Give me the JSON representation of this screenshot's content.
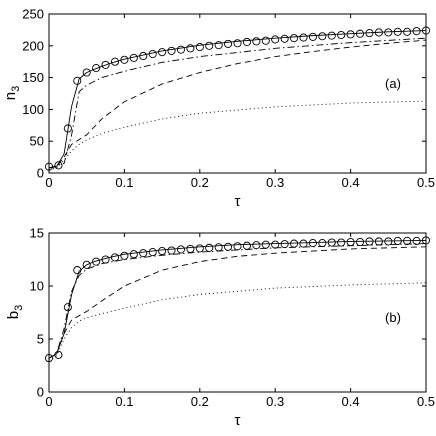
{
  "chart_data": [
    {
      "type": "line",
      "panel_tag": "(a)",
      "xlabel": "τ",
      "ylabel_main": "n",
      "ylabel_sub": "3",
      "xlim": [
        0,
        0.5
      ],
      "ylim": [
        0,
        250
      ],
      "xticks": [
        0,
        0.1,
        0.2,
        0.3,
        0.4,
        0.5
      ],
      "xtick_labels": [
        "0",
        "0.1",
        "0.2",
        "0.3",
        "0.4",
        "0.5"
      ],
      "yticks": [
        0,
        50,
        100,
        150,
        200,
        250
      ],
      "ytick_labels": [
        "0",
        "50",
        "100",
        "150",
        "200",
        "250"
      ],
      "grid": false,
      "legend": "none",
      "series": [
        {
          "style": "solid",
          "color": "#000000",
          "x": [
            0,
            0.01,
            0.02,
            0.03,
            0.04,
            0.05,
            0.06,
            0.08,
            0.1,
            0.15,
            0.2,
            0.25,
            0.3,
            0.35,
            0.4,
            0.45,
            0.5
          ],
          "y": [
            8,
            10,
            30,
            105,
            148,
            158,
            163,
            172,
            179,
            192,
            201,
            207,
            212,
            216,
            219,
            222,
            224
          ]
        },
        {
          "style": "markers",
          "marker": "circle",
          "color": "#000000",
          "x": [
            0,
            0.0125,
            0.025,
            0.0375,
            0.05,
            0.0625,
            0.075,
            0.0875,
            0.1,
            0.1125,
            0.125,
            0.1375,
            0.15,
            0.1625,
            0.175,
            0.1875,
            0.2,
            0.2125,
            0.225,
            0.2375,
            0.25,
            0.2625,
            0.275,
            0.2875,
            0.3,
            0.3125,
            0.325,
            0.3375,
            0.35,
            0.3625,
            0.375,
            0.3875,
            0.4,
            0.4125,
            0.425,
            0.4375,
            0.45,
            0.4625,
            0.475,
            0.4875,
            0.5
          ],
          "y": [
            10,
            12,
            70,
            145,
            158,
            165,
            170,
            175,
            178,
            181,
            184,
            187,
            190,
            192,
            194,
            196,
            198,
            200,
            201,
            203,
            204,
            206,
            207,
            208,
            210,
            211,
            212,
            213,
            214,
            215,
            216,
            217,
            218,
            219,
            220,
            221,
            221,
            222,
            222,
            223,
            224
          ]
        },
        {
          "style": "dashdot",
          "color": "#000000",
          "x": [
            0,
            0.02,
            0.03,
            0.04,
            0.05,
            0.07,
            0.1,
            0.15,
            0.2,
            0.3,
            0.4,
            0.5
          ],
          "y": [
            8,
            15,
            60,
            128,
            138,
            150,
            160,
            174,
            183,
            196,
            205,
            212
          ]
        },
        {
          "style": "dashed",
          "color": "#000000",
          "x": [
            0,
            0.01,
            0.02,
            0.03,
            0.05,
            0.07,
            0.1,
            0.15,
            0.2,
            0.25,
            0.3,
            0.35,
            0.4,
            0.45,
            0.5
          ],
          "y": [
            8,
            10,
            25,
            45,
            60,
            85,
            112,
            140,
            158,
            172,
            183,
            191,
            198,
            204,
            209
          ]
        },
        {
          "style": "dotted",
          "color": "#000000",
          "x": [
            0,
            0.01,
            0.02,
            0.03,
            0.04,
            0.05,
            0.07,
            0.1,
            0.15,
            0.2,
            0.3,
            0.4,
            0.5
          ],
          "y": [
            5,
            8,
            20,
            35,
            45,
            52,
            62,
            72,
            85,
            94,
            104,
            110,
            113
          ]
        }
      ]
    },
    {
      "type": "line",
      "panel_tag": "(b)",
      "xlabel": "τ",
      "ylabel_main": "b",
      "ylabel_sub": "3",
      "xlim": [
        0,
        0.5
      ],
      "ylim": [
        0,
        15
      ],
      "xticks": [
        0,
        0.1,
        0.2,
        0.3,
        0.4,
        0.5
      ],
      "xtick_labels": [
        "0",
        "0.1",
        "0.2",
        "0.3",
        "0.4",
        "0.5"
      ],
      "yticks": [
        0,
        5,
        10,
        15
      ],
      "ytick_labels": [
        "0",
        "5",
        "10",
        "15"
      ],
      "grid": false,
      "legend": "none",
      "series": [
        {
          "style": "solid",
          "color": "#000000",
          "x": [
            0,
            0.01,
            0.02,
            0.03,
            0.04,
            0.05,
            0.06,
            0.08,
            0.1,
            0.15,
            0.2,
            0.25,
            0.3,
            0.35,
            0.4,
            0.45,
            0.5
          ],
          "y": [
            3.2,
            3.6,
            5.5,
            9.2,
            11.4,
            12.0,
            12.3,
            12.7,
            13.0,
            13.4,
            13.7,
            13.9,
            14.0,
            14.1,
            14.2,
            14.25,
            14.3
          ]
        },
        {
          "style": "markers",
          "marker": "circle",
          "color": "#000000",
          "x": [
            0,
            0.0125,
            0.025,
            0.0375,
            0.05,
            0.0625,
            0.075,
            0.0875,
            0.1,
            0.1125,
            0.125,
            0.1375,
            0.15,
            0.1625,
            0.175,
            0.1875,
            0.2,
            0.2125,
            0.225,
            0.2375,
            0.25,
            0.2625,
            0.275,
            0.2875,
            0.3,
            0.3125,
            0.325,
            0.3375,
            0.35,
            0.3625,
            0.375,
            0.3875,
            0.4,
            0.4125,
            0.425,
            0.4375,
            0.45,
            0.4625,
            0.475,
            0.4875,
            0.5
          ],
          "y": [
            3.2,
            3.5,
            8.0,
            11.5,
            12.0,
            12.3,
            12.5,
            12.7,
            12.85,
            13.0,
            13.1,
            13.2,
            13.3,
            13.35,
            13.45,
            13.5,
            13.55,
            13.6,
            13.65,
            13.7,
            13.75,
            13.8,
            13.85,
            13.9,
            13.9,
            13.95,
            14.0,
            14.0,
            14.05,
            14.05,
            14.1,
            14.1,
            14.15,
            14.15,
            14.2,
            14.2,
            14.2,
            14.25,
            14.25,
            14.25,
            14.3
          ]
        },
        {
          "style": "dashdot",
          "color": "#000000",
          "x": [
            0,
            0.01,
            0.02,
            0.03,
            0.04,
            0.05,
            0.07,
            0.1,
            0.15,
            0.2,
            0.3,
            0.4,
            0.5
          ],
          "y": [
            3.2,
            3.6,
            6.0,
            9.5,
            11.0,
            11.6,
            12.1,
            12.5,
            12.9,
            13.2,
            13.6,
            13.8,
            14.0
          ]
        },
        {
          "style": "dashed",
          "color": "#000000",
          "x": [
            0,
            0.01,
            0.02,
            0.03,
            0.05,
            0.07,
            0.1,
            0.15,
            0.2,
            0.25,
            0.3,
            0.35,
            0.4,
            0.45,
            0.5
          ],
          "y": [
            3.2,
            3.6,
            5.5,
            6.8,
            7.6,
            8.6,
            10.0,
            11.5,
            12.3,
            12.8,
            13.1,
            13.3,
            13.5,
            13.6,
            13.7
          ]
        },
        {
          "style": "dotted",
          "color": "#000000",
          "x": [
            0,
            0.01,
            0.02,
            0.03,
            0.04,
            0.05,
            0.07,
            0.1,
            0.15,
            0.2,
            0.3,
            0.4,
            0.5
          ],
          "y": [
            3.0,
            3.4,
            5.0,
            6.1,
            6.7,
            7.0,
            7.4,
            7.9,
            8.7,
            9.2,
            9.8,
            10.1,
            10.3
          ]
        }
      ]
    }
  ]
}
